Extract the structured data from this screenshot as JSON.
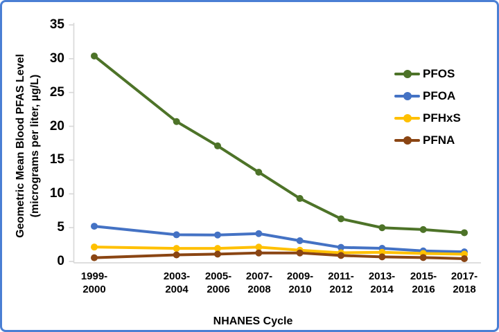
{
  "chart_data": {
    "type": "line",
    "title": "",
    "xlabel": "NHANES Cycle",
    "ylabel_line1": "Geometric Mean Blood PFAS Level",
    "ylabel_line2": "(micrograms per liter, µg/L)",
    "categories": [
      "1999-\n2000",
      "2003-\n2004",
      "2005-\n2006",
      "2007-\n2008",
      "2009-\n2010",
      "2011-\n2012",
      "2013-\n2014",
      "2015-\n2016",
      "2017-\n2018"
    ],
    "x_years": [
      1999.5,
      2003.5,
      2005.5,
      2007.5,
      2009.5,
      2011.5,
      2013.5,
      2015.5,
      2017.5
    ],
    "y_ticks": [
      "35",
      "30",
      "25",
      "20",
      "15",
      "10",
      "5",
      "0"
    ],
    "ylim": [
      0,
      35
    ],
    "grid": "off",
    "legend_position": "right",
    "axis_color": "#d9d9d9",
    "text_color": "#000000",
    "border_color": "#4a7fd4",
    "series": [
      {
        "name": "PFOS",
        "color": "#4d7328",
        "values": [
          30.4,
          20.7,
          17.1,
          13.2,
          9.32,
          6.31,
          4.99,
          4.72,
          4.25
        ]
      },
      {
        "name": "PFOA",
        "color": "#4472c4",
        "values": [
          5.21,
          3.95,
          3.92,
          4.12,
          3.07,
          2.08,
          1.94,
          1.56,
          1.42
        ]
      },
      {
        "name": "PFHxS",
        "color": "#ffc000",
        "values": [
          2.13,
          1.93,
          1.93,
          2.12,
          1.66,
          1.28,
          1.35,
          1.18,
          1.08
        ]
      },
      {
        "name": "PFNA",
        "color": "#8a4513",
        "values": [
          0.55,
          0.97,
          1.09,
          1.26,
          1.26,
          0.88,
          0.68,
          0.58,
          0.41
        ]
      }
    ]
  }
}
